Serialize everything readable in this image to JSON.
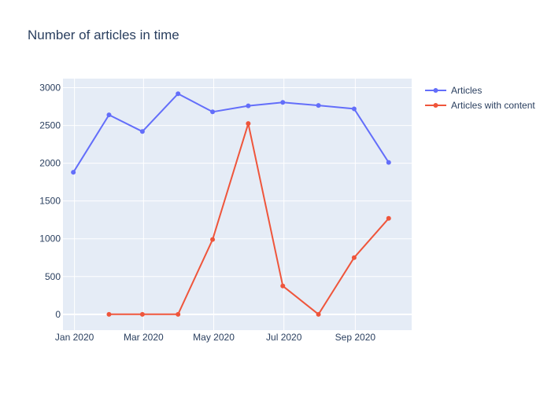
{
  "chart_data": {
    "type": "line",
    "title": "Number of articles in time",
    "xlabel": "",
    "ylabel": "",
    "x": [
      "2019-12-31",
      "2020-01-31",
      "2020-02-29",
      "2020-03-31",
      "2020-04-30",
      "2020-05-31",
      "2020-06-30",
      "2020-07-31",
      "2020-08-31",
      "2020-09-30"
    ],
    "x_ticks": [
      {
        "date": "2020-01-01",
        "label": "Jan 2020"
      },
      {
        "date": "2020-03-01",
        "label": "Mar 2020"
      },
      {
        "date": "2020-05-01",
        "label": "May 2020"
      },
      {
        "date": "2020-07-01",
        "label": "Jul 2020"
      },
      {
        "date": "2020-09-01",
        "label": "Sep 2020"
      }
    ],
    "y_ticks": [
      0,
      500,
      1000,
      1500,
      2000,
      2500,
      3000
    ],
    "y_tick_labels": [
      "0",
      "500",
      "1000",
      "1500",
      "2000",
      "2500",
      "3000"
    ],
    "xlim": [
      "2019-12-22",
      "2020-10-20"
    ],
    "ylim": [
      -210,
      3120
    ],
    "grid": true,
    "legend_position": "top-right outside",
    "series": [
      {
        "name": "Articles",
        "color": "#636efa",
        "values": [
          1880,
          2640,
          2420,
          2920,
          2680,
          2760,
          2805,
          2765,
          2720,
          2010
        ]
      },
      {
        "name": "Articles with content",
        "color": "#ef553b",
        "values": [
          null,
          0,
          0,
          0,
          990,
          2525,
          375,
          0,
          750,
          1270
        ]
      }
    ]
  }
}
